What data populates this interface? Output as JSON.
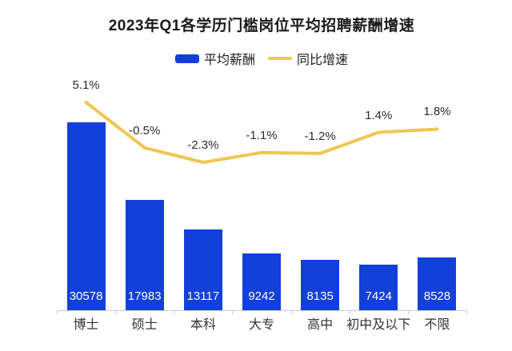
{
  "chart": {
    "title": "2023年Q1各学历门槛岗位平均招聘薪酬增速",
    "legend": [
      {
        "label": "平均薪酬",
        "swatch": "bar-swatch"
      },
      {
        "label": "同比增速",
        "swatch": "line-swatch"
      }
    ]
  },
  "colors": {
    "bar": "#1340D8",
    "line": "#EEC652",
    "axis": "#CCCCCC",
    "bar_value_text": "#FFFFFF",
    "label_text": "#2B2B2B"
  },
  "chart_data": {
    "type": "combo-bar-line",
    "title": "2023年Q1各学历门槛岗位平均招聘薪酬增速",
    "categories": [
      "博士",
      "硕士",
      "本科",
      "大专",
      "高中",
      "初中及以下",
      "不限"
    ],
    "series": [
      {
        "name": "平均薪酬",
        "type": "bar",
        "values": [
          30578,
          17983,
          13117,
          9242,
          8135,
          7424,
          8528
        ],
        "data_labels": [
          "30578",
          "17983",
          "13117",
          "9242",
          "8135",
          "7424",
          "8528"
        ]
      },
      {
        "name": "同比增速",
        "type": "line",
        "unit": "%",
        "values": [
          5.1,
          -0.5,
          -2.3,
          -1.1,
          -1.2,
          1.4,
          1.8
        ],
        "data_labels": [
          "5.1%",
          "-0.5%",
          "-2.3%",
          "-1.1%",
          "-1.2%",
          "1.4%",
          "1.8%"
        ]
      }
    ],
    "legend_position": "top",
    "grid": false,
    "axes_visible": {
      "x": true,
      "y": false
    },
    "x_axis_ticks": "category-boundaries",
    "bar_label_position": "inside-bottom",
    "line_label_position": "above-points"
  }
}
